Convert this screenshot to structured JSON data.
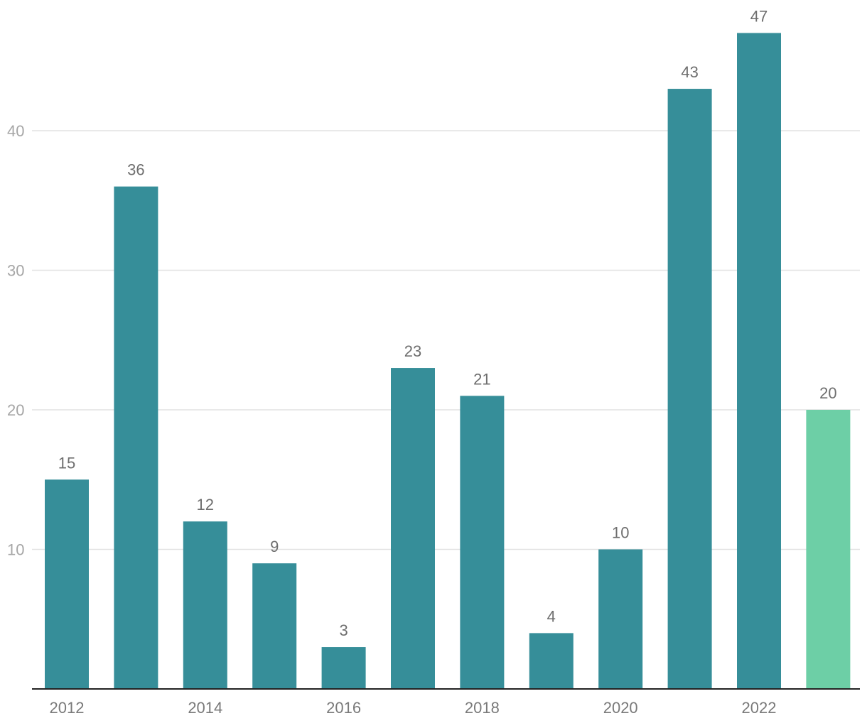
{
  "chart_data": {
    "type": "bar",
    "categories": [
      "2012",
      "2013",
      "2014",
      "2015",
      "2016",
      "2017",
      "2018",
      "2019",
      "2020",
      "2021",
      "2022",
      "2023"
    ],
    "values": [
      15,
      36,
      12,
      9,
      3,
      23,
      21,
      4,
      10,
      43,
      47,
      20
    ],
    "x_tick_labels": [
      "2012",
      "2014",
      "2016",
      "2018",
      "2020",
      "2022"
    ],
    "y_ticks": [
      10,
      20,
      30,
      40
    ],
    "ylim": [
      0,
      48
    ],
    "grid": true,
    "legend": "none",
    "colors": {
      "bar": "#368e99",
      "highlight": "#6dcfa6",
      "baseline": "#222222",
      "gridline": "#e2e2e2"
    },
    "highlight_index": 11
  }
}
